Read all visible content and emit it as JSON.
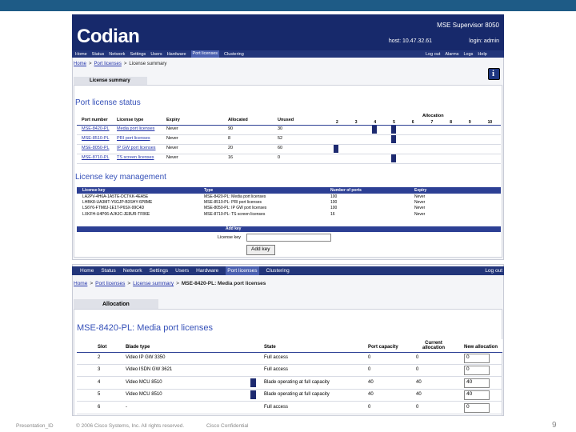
{
  "slide": {
    "footer_left": "Presentation_ID",
    "copyright": "© 2006 Cisco Systems, Inc. All rights reserved.",
    "confidential": "Cisco Confidential",
    "page": "9"
  },
  "top": {
    "logo": "Codian",
    "product": "MSE Supervisor 8050",
    "host": "host: 10.47.32.61",
    "login": "login: admin",
    "nav": [
      "Home",
      "Status",
      "Network",
      "Settings",
      "Users",
      "Hardware",
      "Port licenses",
      "Clustering"
    ],
    "nav_right": [
      "Log out",
      "Alarms",
      "Logs",
      "Help"
    ],
    "separator": ">",
    "breadcrumb": [
      "Home",
      "Port licenses",
      "License summary"
    ],
    "tab": "License summary",
    "status_title": "Port license status",
    "status_headers": [
      "Port number",
      "License type",
      "Expiry",
      "Allocated",
      "Unused"
    ],
    "allocation_label": "Allocation",
    "allocation_scale": [
      "2",
      "3",
      "4",
      "5",
      "6",
      "7",
      "8",
      "9",
      "10"
    ],
    "status_rows": [
      [
        "MSE-8420-PL",
        "Media port licenses",
        "Never",
        "90",
        "30"
      ],
      [
        "MSE-8510-PL",
        "PRI port licenses",
        "Never",
        "8",
        "52"
      ],
      [
        "MSE-8050-PL",
        "IP GW port licenses",
        "Never",
        "20",
        "60"
      ],
      [
        "MSE-8710-PL",
        "TS screen licenses",
        "Never",
        "16",
        "0"
      ]
    ],
    "key_title": "License key management",
    "key_headers": [
      "License key",
      "Type",
      "Number of ports",
      "Expiry"
    ],
    "key_rows": [
      [
        "LA2PV-4H6A-1A5TE-DCTKK-4EA5E",
        "MSE-8420-PL: Media port licenses",
        "100",
        "Never"
      ],
      [
        "LHBK8-UA3MT-Y6GJP-B3SHY-6P8ME",
        "MSE-8510-PL: PRI port licenses",
        "100",
        "Never"
      ],
      [
        "LS6Y6-FTM8J-1E1T-P6SX-99C4D",
        "MSE-8050-PL: IP GW port licenses",
        "100",
        "Never"
      ],
      [
        "LXKFH-U4P06-AJKJC-JE8UR-TF86E",
        "MSE-8710-PL: TS screen licenses",
        "16",
        "Never"
      ]
    ],
    "add_key_header": "Add key",
    "license_key_label": "License key",
    "add_key_button": "Add key"
  },
  "bottom": {
    "nav": [
      "Home",
      "Status",
      "Network",
      "Settings",
      "Users",
      "Hardware",
      "Port licenses",
      "Clustering"
    ],
    "log_out": "Log out",
    "breadcrumb": [
      "Home",
      "Port licenses",
      "License summary",
      "MSE-8420-PL: Media port licenses"
    ],
    "tab": "Allocation",
    "title": "MSE-8420-PL: Media port licenses",
    "headers": [
      "Slot",
      "Blade type",
      "State",
      "Port capacity",
      "Current allocation",
      "New allocation"
    ],
    "rows": [
      [
        "2",
        "Video IP GW 3350",
        "Full access",
        "0",
        "0",
        "0"
      ],
      [
        "3",
        "Video ISDN GW 3621",
        "Full access",
        "0",
        "0",
        "0"
      ],
      [
        "4",
        "Video MCU 8510",
        "Blade operating at full capacity",
        "40",
        "40",
        "40"
      ],
      [
        "5",
        "Video MCU 8510",
        "Blade operating at full capacity",
        "40",
        "40",
        "40"
      ],
      [
        "6",
        "-",
        "Full access",
        "0",
        "0",
        "0"
      ]
    ]
  }
}
